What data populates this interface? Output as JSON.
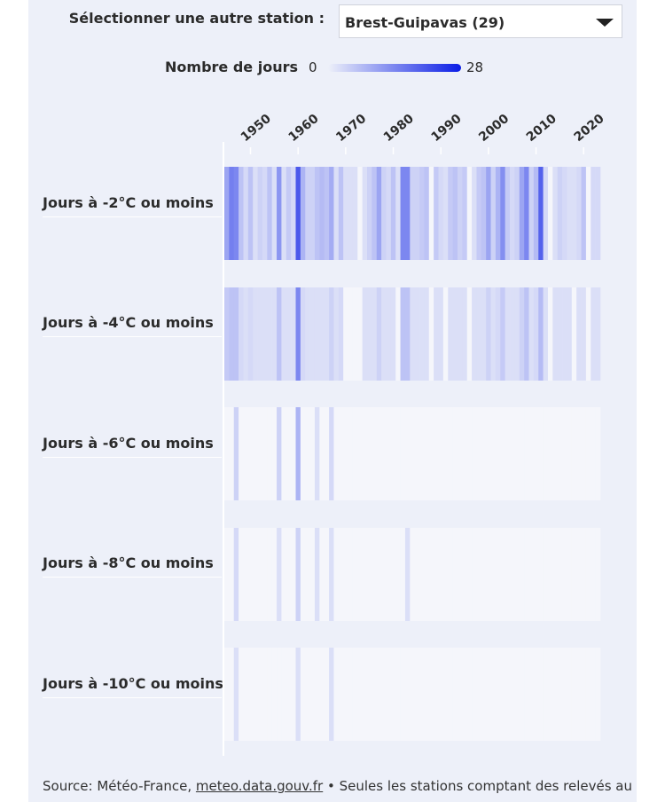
{
  "header": {
    "selector_label": "Sélectionner une autre station :",
    "selected_station": "Brest-Guipavas (29)"
  },
  "legend": {
    "title": "Nombre de jours",
    "min": "0",
    "max": "28",
    "color_low": "#edf0f9",
    "color_high": "#0b1de6"
  },
  "rows": [
    "Jours à -2°C ou moins",
    "Jours à -4°C ou moins",
    "Jours à -6°C ou moins",
    "Jours à -8°C ou moins",
    "Jours à -10°C ou moins"
  ],
  "source": {
    "prefix": "Source: Météo-France, ",
    "link": "meteo.data.gouv.fr",
    "suffix": " • Seules les stations comptant des relevés au"
  },
  "chart_data": {
    "type": "heatmap",
    "x_ticks": [
      "1950",
      "1960",
      "1970",
      "1980",
      "1990",
      "2000",
      "2010",
      "2020"
    ],
    "x_start": 1945,
    "x_end": 2023,
    "color_range": [
      0,
      28
    ],
    "series": [
      {
        "name": "Jours à -2°C ou moins",
        "values": [
          10,
          15,
          14,
          6,
          3,
          6,
          2,
          4,
          3,
          6,
          2,
          12,
          2,
          5,
          3,
          20,
          8,
          4,
          4,
          6,
          7,
          6,
          9,
          2,
          6,
          1,
          1,
          1,
          0,
          2,
          4,
          6,
          10,
          4,
          3,
          6,
          1,
          14,
          14,
          4,
          4,
          5,
          6,
          0,
          5,
          3,
          1,
          5,
          6,
          4,
          5,
          0,
          2,
          5,
          6,
          10,
          4,
          8,
          13,
          5,
          3,
          4,
          10,
          14,
          4,
          7,
          19,
          3,
          0,
          2,
          4,
          3,
          2,
          1,
          3,
          6,
          0,
          3,
          3
        ]
      },
      {
        "name": "Jours à -4°C ou moins",
        "values": [
          5,
          6,
          6,
          3,
          1,
          3,
          1,
          1,
          1,
          2,
          1,
          6,
          1,
          2,
          1,
          14,
          3,
          1,
          1,
          2,
          2,
          1,
          4,
          1,
          3,
          0,
          0,
          0,
          0,
          1,
          1,
          2,
          4,
          1,
          1,
          2,
          0,
          6,
          6,
          2,
          1,
          2,
          2,
          0,
          2,
          1,
          0,
          2,
          2,
          1,
          2,
          0,
          1,
          2,
          2,
          4,
          1,
          3,
          5,
          2,
          1,
          1,
          4,
          6,
          1,
          3,
          7,
          1,
          0,
          1,
          1,
          1,
          1,
          0,
          1,
          2,
          0,
          1,
          1
        ]
      },
      {
        "name": "Jours à -6°C ou moins",
        "values": [
          0,
          0,
          4,
          0,
          0,
          0,
          0,
          0,
          0,
          0,
          0,
          4,
          0,
          0,
          0,
          8,
          0,
          0,
          0,
          2,
          0,
          0,
          3,
          0,
          0,
          0,
          0,
          0,
          0,
          0,
          0,
          0,
          0,
          0,
          0,
          0,
          0,
          0,
          0,
          0,
          0,
          0,
          0,
          0,
          0,
          0,
          0,
          0,
          0,
          0,
          0,
          0,
          0,
          0,
          0,
          0,
          0,
          0,
          0,
          0,
          0,
          0,
          0,
          0,
          0,
          0,
          0,
          0,
          0,
          0,
          0,
          0,
          0,
          0,
          0,
          0,
          0,
          0,
          0
        ]
      },
      {
        "name": "Jours à -8°C ou moins",
        "values": [
          0,
          0,
          3,
          0,
          0,
          0,
          0,
          0,
          0,
          0,
          0,
          1,
          0,
          0,
          0,
          4,
          0,
          0,
          0,
          1,
          0,
          0,
          1,
          0,
          0,
          0,
          0,
          0,
          0,
          0,
          0,
          0,
          0,
          0,
          0,
          0,
          0,
          0,
          1,
          0,
          0,
          0,
          0,
          0,
          0,
          0,
          0,
          0,
          0,
          0,
          0,
          0,
          0,
          0,
          0,
          0,
          0,
          0,
          0,
          0,
          0,
          0,
          0,
          0,
          0,
          0,
          0,
          0,
          0,
          0,
          0,
          0,
          0,
          0,
          0,
          0,
          0,
          0,
          0
        ]
      },
      {
        "name": "Jours à -10°C ou moins",
        "values": [
          0,
          0,
          2,
          0,
          0,
          0,
          0,
          0,
          0,
          0,
          0,
          0,
          0,
          0,
          0,
          1,
          0,
          0,
          0,
          0,
          0,
          0,
          1,
          0,
          0,
          0,
          0,
          0,
          0,
          0,
          0,
          0,
          0,
          0,
          0,
          0,
          0,
          0,
          0,
          0,
          0,
          0,
          0,
          0,
          0,
          0,
          0,
          0,
          0,
          0,
          0,
          0,
          0,
          0,
          0,
          0,
          0,
          0,
          0,
          0,
          0,
          0,
          0,
          0,
          0,
          0,
          0,
          0,
          0,
          0,
          0,
          0,
          0,
          0,
          0,
          0,
          0,
          0,
          0
        ]
      }
    ]
  }
}
